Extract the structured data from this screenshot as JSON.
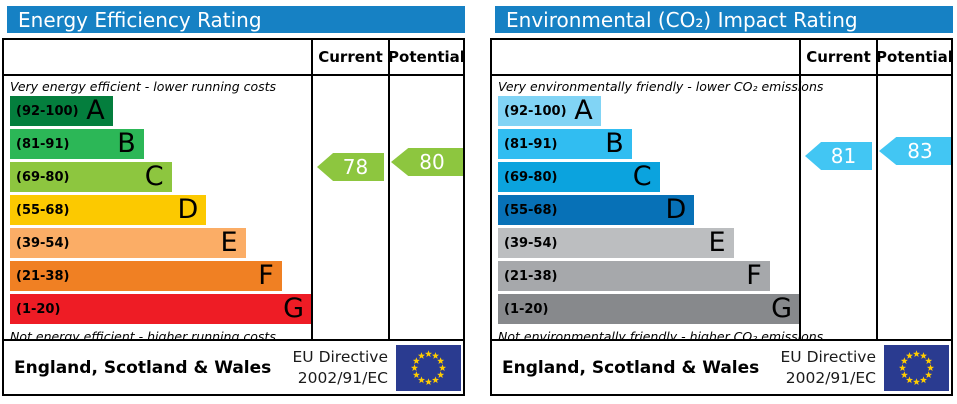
{
  "colors": {
    "header_bg": "#1681c4",
    "border": "#000000",
    "eu_flag_blue": "#2a3b90",
    "eu_star_yellow": "#ffcc00"
  },
  "chart_data": [
    {
      "type": "bar",
      "title": "Energy Efficiency Rating",
      "columns": {
        "current": "Current",
        "potential": "Potential"
      },
      "top_caption": "Very energy efficient - lower running costs",
      "bottom_caption": "Not energy efficient - higher running costs",
      "bands": [
        {
          "letter": "A",
          "range_label": "(92-100)",
          "low": 92,
          "high": 100,
          "color": "#047e3d",
          "width_pct": 34
        },
        {
          "letter": "B",
          "range_label": "(81-91)",
          "low": 81,
          "high": 91,
          "color": "#2cb757",
          "width_pct": 44.3
        },
        {
          "letter": "C",
          "range_label": "(69-80)",
          "low": 69,
          "high": 80,
          "color": "#8dc63f",
          "width_pct": 53.5
        },
        {
          "letter": "D",
          "range_label": "(55-68)",
          "low": 55,
          "high": 68,
          "color": "#fcc900",
          "width_pct": 65
        },
        {
          "letter": "E",
          "range_label": "(39-54)",
          "low": 39,
          "high": 54,
          "color": "#fbad66",
          "width_pct": 78
        },
        {
          "letter": "F",
          "range_label": "(21-38)",
          "low": 21,
          "high": 38,
          "color": "#f08023",
          "width_pct": 90
        },
        {
          "letter": "G",
          "range_label": "(1-20)",
          "low": 1,
          "high": 20,
          "color": "#ee1c25",
          "width_pct": 100
        }
      ],
      "current": {
        "value": 78,
        "color": "#8dc63f"
      },
      "potential": {
        "value": 80,
        "color": "#8dc63f"
      },
      "footer": {
        "region": "England, Scotland & Wales",
        "directive": [
          "EU Directive",
          "2002/91/EC"
        ]
      }
    },
    {
      "type": "bar",
      "title": "Environmental (CO₂) Impact Rating",
      "columns": {
        "current": "Current",
        "potential": "Potential"
      },
      "top_caption": "Very environmentally friendly - lower CO₂ emissions",
      "bottom_caption": "Not environmentally friendly - higher CO₂ emissions",
      "bands": [
        {
          "letter": "A",
          "range_label": "(92-100)",
          "low": 92,
          "high": 100,
          "color": "#81d4f5",
          "width_pct": 34
        },
        {
          "letter": "B",
          "range_label": "(81-91)",
          "low": 81,
          "high": 91,
          "color": "#31bdf1",
          "width_pct": 44.3
        },
        {
          "letter": "C",
          "range_label": "(69-80)",
          "low": 69,
          "high": 80,
          "color": "#0ba3de",
          "width_pct": 53.5
        },
        {
          "letter": "D",
          "range_label": "(55-68)",
          "low": 55,
          "high": 68,
          "color": "#0771b7",
          "width_pct": 65
        },
        {
          "letter": "E",
          "range_label": "(39-54)",
          "low": 39,
          "high": 54,
          "color": "#bcbec0",
          "width_pct": 78
        },
        {
          "letter": "F",
          "range_label": "(21-38)",
          "low": 21,
          "high": 38,
          "color": "#a6a8ab",
          "width_pct": 90
        },
        {
          "letter": "G",
          "range_label": "(1-20)",
          "low": 1,
          "high": 20,
          "color": "#87898c",
          "width_pct": 100
        }
      ],
      "current": {
        "value": 81,
        "color": "#42c6f3"
      },
      "potential": {
        "value": 83,
        "color": "#42c6f3"
      },
      "footer": {
        "region": "England, Scotland & Wales",
        "directive": [
          "EU Directive",
          "2002/91/EC"
        ]
      }
    }
  ]
}
